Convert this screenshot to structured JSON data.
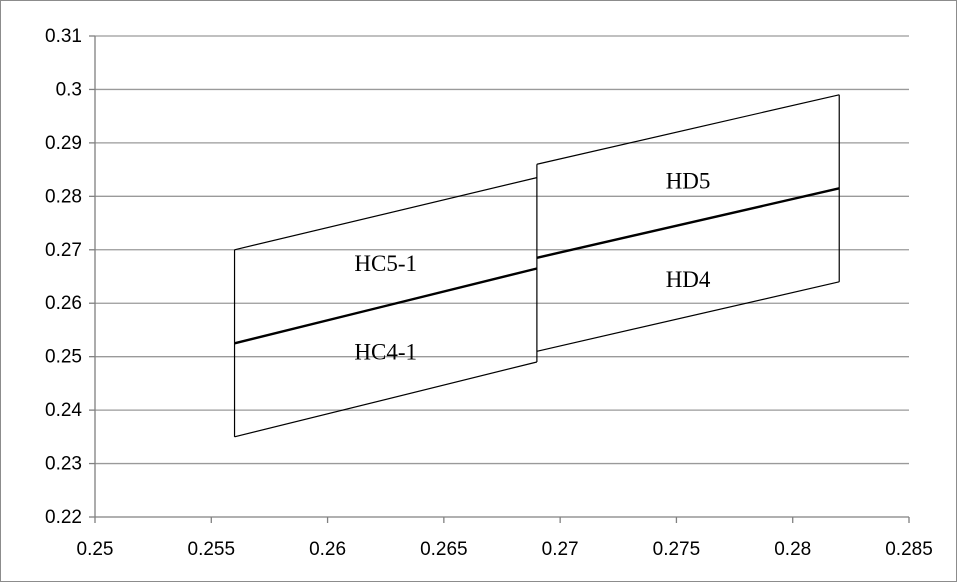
{
  "chart_data": {
    "type": "line",
    "title": "",
    "xlabel": "",
    "ylabel": "",
    "xlim": [
      0.25,
      0.285
    ],
    "ylim": [
      0.22,
      0.31
    ],
    "x_ticks": [
      "0.25",
      "0.255",
      "0.26",
      "0.265",
      "0.27",
      "0.275",
      "0.28",
      "0.285"
    ],
    "y_ticks": [
      "0.22",
      "0.23",
      "0.24",
      "0.25",
      "0.26",
      "0.27",
      "0.28",
      "0.29",
      "0.3",
      "0.31"
    ],
    "grid": "horizontal",
    "legend": "none",
    "line_color": "#000000",
    "grid_color": "#9a9a9a",
    "series": [
      {
        "x": [
          0.256,
          0.269
        ],
        "y": [
          0.27,
          0.2835
        ]
      },
      {
        "x": [
          0.256,
          0.269
        ],
        "y": [
          0.2525,
          0.2665
        ]
      },
      {
        "x": [
          0.256,
          0.269
        ],
        "y": [
          0.235,
          0.249
        ]
      },
      {
        "x": [
          0.269,
          0.282
        ],
        "y": [
          0.286,
          0.299
        ]
      },
      {
        "x": [
          0.269,
          0.282
        ],
        "y": [
          0.2685,
          0.2815
        ]
      },
      {
        "x": [
          0.269,
          0.282
        ],
        "y": [
          0.251,
          0.264
        ]
      },
      {
        "x": [
          0.256,
          0.256
        ],
        "y": [
          0.235,
          0.27
        ]
      },
      {
        "x": [
          0.269,
          0.269
        ],
        "y": [
          0.249,
          0.286
        ]
      },
      {
        "x": [
          0.282,
          0.282
        ],
        "y": [
          0.264,
          0.299
        ]
      }
    ],
    "annotations": [
      {
        "text": "HC5-1",
        "x": 0.2625,
        "y": 0.267
      },
      {
        "text": "HC4-1",
        "x": 0.2625,
        "y": 0.2505
      },
      {
        "text": "HD5",
        "x": 0.2755,
        "y": 0.2825
      },
      {
        "text": "HD4",
        "x": 0.2755,
        "y": 0.264
      }
    ]
  }
}
